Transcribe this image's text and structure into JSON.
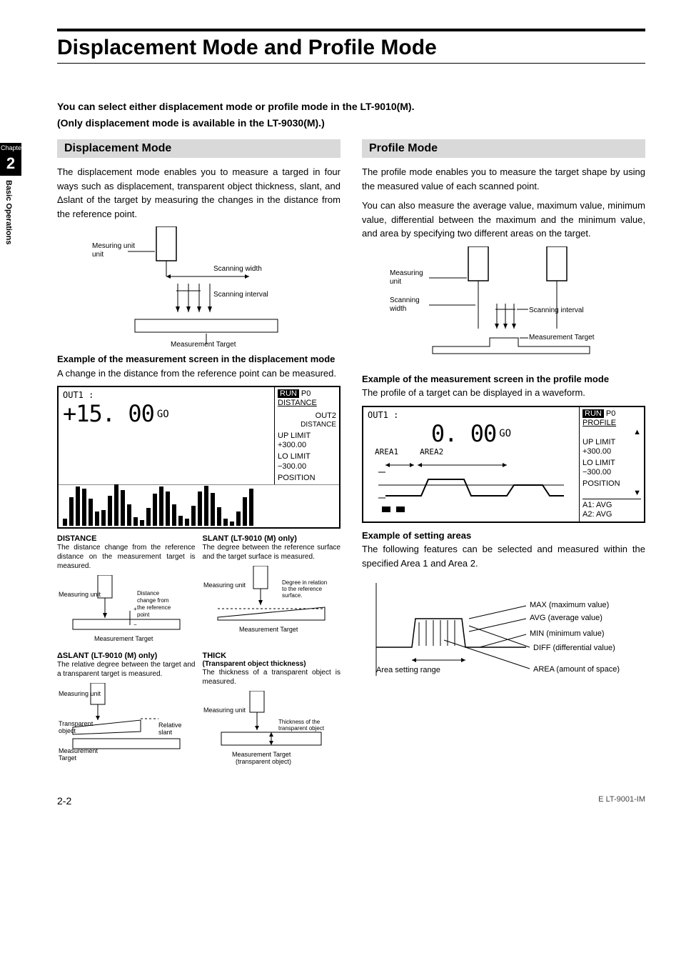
{
  "chapter": {
    "badge": "Chapter",
    "number": "2",
    "label": "Basic Operations"
  },
  "title": "Displacement Mode and Profile Mode",
  "intro_line1": "You can select either displacement mode or profile mode in the LT-9010(M).",
  "intro_line2": "(Only displacement mode is available in the LT-9030(M).)",
  "left": {
    "header": "Displacement Mode",
    "para": "The displacement mode enables you to measure a targed in four ways such as displacement, transparent object thickness, slant, and Δslant of the target by measuring the changes in the distance from the reference point.",
    "diagram": {
      "measuring_unit": "Mesuring unit",
      "scanning_width": "Scanning width",
      "scanning_interval": "Scanning interval",
      "measurement_target": "Measurement Target"
    },
    "example_heading": "Example of the measurement screen in the displacement mode",
    "example_text": "A change in the distance from the reference point can be measured.",
    "screen": {
      "out": "OUT1 :",
      "value": "+15. 00",
      "go": "GO",
      "run": "RUN",
      "p0": "P0",
      "mode": "DISTANCE",
      "out2": "OUT2",
      "out2_mode": "DISTANCE",
      "uplimit_label": "UP LIMIT",
      "uplimit_value": "+300.00",
      "lolimit_label": "LO LIMIT",
      "lolimit_value": "−300.00",
      "position": "POSITION",
      "bars": [
        10,
        40,
        55,
        52,
        38,
        20,
        22,
        42,
        58,
        50,
        30,
        12,
        8,
        25,
        45,
        55,
        48,
        30,
        14,
        10,
        28,
        48,
        56,
        46,
        26,
        10,
        6,
        20,
        40,
        52
      ]
    },
    "distance": {
      "title": "DISTANCE",
      "text": "The distance change from the reference distance on the measurement target is measured.",
      "labels": {
        "unit": "Measuring unit",
        "change": "Distance change from the reference point",
        "target": "Measurement Target"
      }
    },
    "slant": {
      "title": "SLANT (LT-9010 (M) only)",
      "text": "The degree between the reference surface and the target surface is measured.",
      "labels": {
        "unit": "Measuring unit",
        "degree": "Degree in relation to the reference surface.",
        "target": "Measurement Target"
      }
    },
    "dslant": {
      "title": "ΔSLANT (LT-9010 (M) only)",
      "text": "The relative degree between the target and a transparent target is measured.",
      "labels": {
        "unit": "Measuring unit",
        "transparent": "Transparent object",
        "relative": "Relative slant",
        "target": "Measurement Target"
      }
    },
    "thick": {
      "title": "THICK",
      "subtitle": "(Transparent object thickness)",
      "text": "The thickness of a transparent object is measured.",
      "labels": {
        "unit": "Measuring unit",
        "thickness": "Thickness of the transparent object",
        "target": "Measurement Target (transparent object)"
      }
    }
  },
  "right": {
    "header": "Profile Mode",
    "para1": "The profile mode enables you to measure the target shape by using the measured value of each scanned point.",
    "para2": "You can also measure the average value, maximum value, minimum value, differential between the maximum and the minimum value, and area by specifying two different areas on the target.",
    "diagram": {
      "measuring_unit": "Measuring unit",
      "scanning_width": "Scanning width",
      "scanning_interval": "Scanning interval",
      "measurement_target": "Measurement Target"
    },
    "example_heading": "Example of the measurement screen in the profile mode",
    "example_text": "The profile of a target can be displayed in a waveform.",
    "screen": {
      "out": "OUT1 :",
      "value": "0. 00",
      "go": "GO",
      "run": "RUN",
      "p0": "P0",
      "mode": "PROFILE",
      "area1": "AREA1",
      "area2": "AREA2",
      "uplimit_label": "UP LIMIT",
      "uplimit_value": "+300.00",
      "lolimit_label": "LO LIMIT",
      "lolimit_value": "−300.00",
      "position": "POSITION",
      "a1": "A1: AVG",
      "a2": "A2: AVG"
    },
    "areas_heading": "Example of setting areas",
    "areas_text": "The following features can be selected and measured within the specified Area 1 and Area 2.",
    "features": {
      "max": "MAX (maximum value)",
      "avg": "AVG (average value)",
      "min": "MIN (minimum value)",
      "diff": "DIFF (differential value)",
      "area": "AREA (amount of space)",
      "range": "Area setting range"
    }
  },
  "footer": {
    "page": "2-2",
    "doc": "E LT-9001-IM"
  }
}
